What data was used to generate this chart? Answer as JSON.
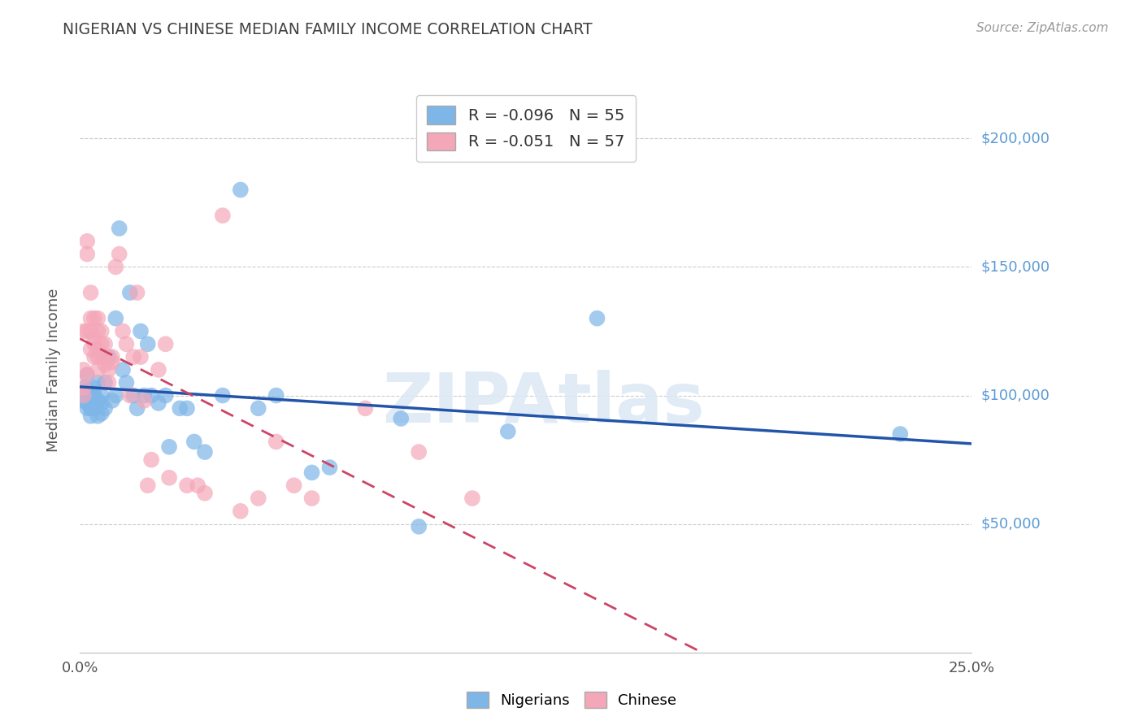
{
  "title": "NIGERIAN VS CHINESE MEDIAN FAMILY INCOME CORRELATION CHART",
  "source": "Source: ZipAtlas.com",
  "ylabel": "Median Family Income",
  "xlim": [
    0.0,
    0.25
  ],
  "ylim": [
    0,
    220000
  ],
  "yticks": [
    50000,
    100000,
    150000,
    200000
  ],
  "ytick_labels": [
    "$50,000",
    "$100,000",
    "$150,000",
    "$200,000"
  ],
  "xticks": [
    0.0,
    0.05,
    0.1,
    0.15,
    0.2,
    0.25
  ],
  "xtick_labels": [
    "0.0%",
    "",
    "",
    "",
    "",
    "25.0%"
  ],
  "nigerian_color": "#7EB6E8",
  "chinese_color": "#F4A7B9",
  "nigerian_trend_color": "#2255AA",
  "chinese_trend_color": "#CC4466",
  "nigerian_R": -0.096,
  "nigerian_N": 55,
  "chinese_R": -0.051,
  "chinese_N": 57,
  "background_color": "#FFFFFF",
  "grid_color": "#CCCCCC",
  "right_label_color": "#5B9BD5",
  "title_color": "#404040",
  "watermark": "ZIPAtlas",
  "nigerian_x": [
    0.001,
    0.001,
    0.001,
    0.002,
    0.002,
    0.002,
    0.002,
    0.003,
    0.003,
    0.003,
    0.003,
    0.004,
    0.004,
    0.004,
    0.004,
    0.005,
    0.005,
    0.005,
    0.006,
    0.006,
    0.006,
    0.007,
    0.007,
    0.008,
    0.009,
    0.01,
    0.01,
    0.011,
    0.012,
    0.013,
    0.014,
    0.015,
    0.016,
    0.017,
    0.018,
    0.019,
    0.02,
    0.022,
    0.024,
    0.025,
    0.028,
    0.03,
    0.032,
    0.035,
    0.04,
    0.045,
    0.05,
    0.055,
    0.065,
    0.07,
    0.09,
    0.095,
    0.12,
    0.145,
    0.23
  ],
  "nigerian_y": [
    100000,
    98000,
    103000,
    95000,
    102000,
    97000,
    108000,
    96000,
    100000,
    95000,
    92000,
    100000,
    97000,
    103000,
    95000,
    98000,
    92000,
    105000,
    97000,
    100000,
    93000,
    105000,
    95000,
    115000,
    98000,
    130000,
    100000,
    165000,
    110000,
    105000,
    140000,
    100000,
    95000,
    125000,
    100000,
    120000,
    100000,
    97000,
    100000,
    80000,
    95000,
    95000,
    82000,
    78000,
    100000,
    180000,
    95000,
    100000,
    70000,
    72000,
    91000,
    49000,
    86000,
    130000,
    85000
  ],
  "chinese_x": [
    0.001,
    0.001,
    0.001,
    0.001,
    0.002,
    0.002,
    0.002,
    0.002,
    0.003,
    0.003,
    0.003,
    0.003,
    0.004,
    0.004,
    0.004,
    0.004,
    0.005,
    0.005,
    0.005,
    0.005,
    0.005,
    0.006,
    0.006,
    0.006,
    0.007,
    0.007,
    0.007,
    0.008,
    0.008,
    0.009,
    0.009,
    0.01,
    0.011,
    0.012,
    0.013,
    0.014,
    0.015,
    0.016,
    0.017,
    0.018,
    0.019,
    0.02,
    0.022,
    0.024,
    0.025,
    0.03,
    0.033,
    0.035,
    0.04,
    0.045,
    0.05,
    0.055,
    0.06,
    0.065,
    0.08,
    0.095,
    0.11
  ],
  "chinese_y": [
    110000,
    125000,
    103000,
    100000,
    160000,
    155000,
    108000,
    125000,
    140000,
    130000,
    118000,
    125000,
    130000,
    120000,
    122000,
    115000,
    125000,
    130000,
    118000,
    115000,
    110000,
    120000,
    125000,
    115000,
    120000,
    115000,
    112000,
    110000,
    105000,
    115000,
    113000,
    150000,
    155000,
    125000,
    120000,
    100000,
    115000,
    140000,
    115000,
    98000,
    65000,
    75000,
    110000,
    120000,
    68000,
    65000,
    65000,
    62000,
    170000,
    55000,
    60000,
    82000,
    65000,
    60000,
    95000,
    78000,
    60000
  ]
}
